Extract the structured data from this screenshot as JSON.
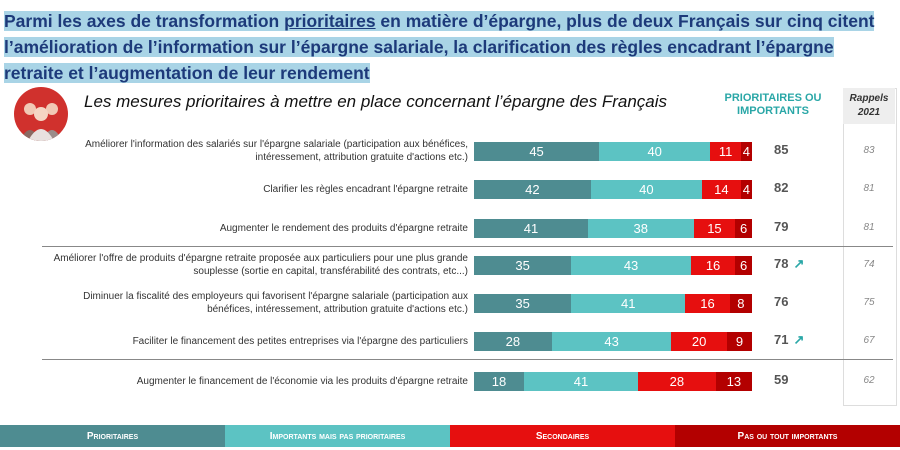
{
  "headline": {
    "part1": "Parmi les axes de transformation ",
    "underlined": "prioritaires",
    "part2": " en matière d’épargne, plus de deux Français sur cinq citent l’amélioration de l’information sur l’épargne salariale, la clarification des règles encadrant l’épargne retraite et l’augmentation de leur rendement"
  },
  "subtitle": "Les mesures prioritaires à mettre en place concernant l’épargne des Français",
  "column_headers": {
    "prioritaires_ou_importants": "PRIORITAIRES OU IMPORTANTS",
    "rappels": "Rappels",
    "rappels_year": "2021"
  },
  "colors": {
    "prioritaires": "#4e8c91",
    "importants": "#5cc3c3",
    "secondaires": "#e60f0f",
    "pas_importants": "#b30000"
  },
  "chart_data": {
    "type": "bar",
    "stacked": true,
    "orientation": "horizontal",
    "title": "Les mesures prioritaires à mettre en place concernant l’épargne des Français",
    "xlim": [
      0,
      100
    ],
    "categories": [
      "Améliorer l'information des salariés sur l'épargne salariale (participation aux bénéfices, intéressement, attribution gratuite d'actions etc.)",
      "Clarifier les règles encadrant l'épargne retraite",
      "Augmenter le rendement des produits d'épargne retraite",
      "Améliorer l'offre de produits d'épargne retraite proposée aux particuliers pour une plus grande souplesse (sortie en capital, transférabilité des contrats, etc...)",
      "Diminuer la fiscalité des employeurs qui favorisent l'épargne salariale (participation aux bénéfices, intéressement, attribution gratuite d'actions etc.)",
      "Faciliter le financement des petites entreprises via l'épargne des particuliers",
      "Augmenter le financement de l'économie via les produits d'épargne retraite"
    ],
    "series": [
      {
        "name": "Prioritaires",
        "values": [
          45,
          42,
          41,
          35,
          35,
          28,
          18
        ]
      },
      {
        "name": "Importants mais pas prioritaires",
        "values": [
          40,
          40,
          38,
          43,
          41,
          43,
          41
        ]
      },
      {
        "name": "Secondaires",
        "values": [
          11,
          14,
          15,
          16,
          16,
          20,
          28
        ]
      },
      {
        "name": "Pas ou tout importants",
        "values": [
          4,
          4,
          6,
          6,
          8,
          9,
          13
        ]
      }
    ],
    "totals_prioritaires_ou_importants": [
      85,
      82,
      79,
      78,
      76,
      71,
      59
    ],
    "trend_up": [
      false,
      false,
      false,
      true,
      false,
      true,
      false
    ],
    "rappels_2021": [
      83,
      81,
      81,
      74,
      75,
      67,
      62
    ],
    "legend": [
      "Prioritaires",
      "Importants mais pas prioritaires",
      "Secondaires",
      "Pas ou tout importants"
    ],
    "legend_position": "bottom"
  }
}
